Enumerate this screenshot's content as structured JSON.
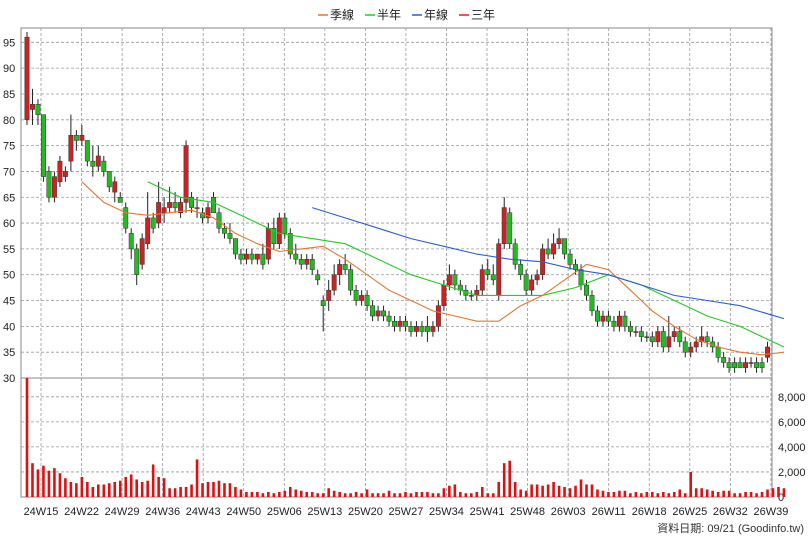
{
  "legend": [
    {
      "label": "季線",
      "color": "#e8762c"
    },
    {
      "label": "半年",
      "color": "#22cc22"
    },
    {
      "label": "年線",
      "color": "#2a5fd0"
    },
    {
      "label": "三年",
      "color": "#dd2222"
    }
  ],
  "footer": "資料日期: 09/21  (Goodinfo.tw)",
  "colors": {
    "up": "#cc2222",
    "down": "#22bb22",
    "volume": "#dd1111",
    "grid": "#9a9a9a",
    "wick": "#222222"
  },
  "chart_data": {
    "type": "candlestick",
    "price_axis": {
      "min": 30,
      "max": 97,
      "ticks": [
        30,
        35,
        40,
        45,
        50,
        55,
        60,
        65,
        70,
        75,
        80,
        85,
        90,
        95
      ]
    },
    "volume_axis": {
      "min": 0,
      "max": 9500,
      "ticks": [
        "0",
        "2,000",
        "4,000",
        "6,000",
        "8,000"
      ],
      "tick_values": [
        0,
        2000,
        4000,
        6000,
        8000
      ]
    },
    "x_labels": [
      "24W15",
      "24W22",
      "24W29",
      "24W36",
      "24W43",
      "24W50",
      "25W06",
      "25W13",
      "25W20",
      "25W27",
      "25W34",
      "25W41",
      "25W48",
      "26W03",
      "26W11",
      "26W18",
      "26W25",
      "26W32",
      "26W39"
    ],
    "candles": [
      {
        "o": 80,
        "h": 97,
        "l": 79,
        "c": 96
      },
      {
        "o": 82,
        "h": 86,
        "l": 79,
        "c": 83
      },
      {
        "o": 83,
        "h": 84,
        "l": 79,
        "c": 81
      },
      {
        "o": 81,
        "h": 81,
        "l": 68,
        "c": 69
      },
      {
        "o": 70,
        "h": 71,
        "l": 64,
        "c": 65
      },
      {
        "o": 65,
        "h": 70,
        "l": 64,
        "c": 69
      },
      {
        "o": 68,
        "h": 73,
        "l": 67,
        "c": 72
      },
      {
        "o": 69,
        "h": 71,
        "l": 68,
        "c": 70
      },
      {
        "o": 72,
        "h": 81,
        "l": 70,
        "c": 77
      },
      {
        "o": 77,
        "h": 78,
        "l": 74,
        "c": 76
      },
      {
        "o": 76,
        "h": 79,
        "l": 75,
        "c": 77
      },
      {
        "o": 76,
        "h": 76,
        "l": 71,
        "c": 72
      },
      {
        "o": 72,
        "h": 75,
        "l": 69,
        "c": 71
      },
      {
        "o": 71,
        "h": 75,
        "l": 70,
        "c": 73
      },
      {
        "o": 72,
        "h": 73,
        "l": 69,
        "c": 70
      },
      {
        "o": 70,
        "h": 70,
        "l": 66,
        "c": 67
      },
      {
        "o": 66,
        "h": 69,
        "l": 64,
        "c": 68
      },
      {
        "o": 65,
        "h": 66,
        "l": 64,
        "c": 64
      },
      {
        "o": 63,
        "h": 64,
        "l": 58,
        "c": 59
      },
      {
        "o": 58,
        "h": 59,
        "l": 53,
        "c": 55
      },
      {
        "o": 55,
        "h": 56,
        "l": 48,
        "c": 50
      },
      {
        "o": 52,
        "h": 58,
        "l": 51,
        "c": 57
      },
      {
        "o": 56,
        "h": 66,
        "l": 55,
        "c": 61
      },
      {
        "o": 61,
        "h": 62,
        "l": 58,
        "c": 59
      },
      {
        "o": 60,
        "h": 68,
        "l": 59,
        "c": 64
      },
      {
        "o": 62,
        "h": 65,
        "l": 60,
        "c": 63
      },
      {
        "o": 63,
        "h": 67,
        "l": 62,
        "c": 64
      },
      {
        "o": 64,
        "h": 66,
        "l": 62,
        "c": 63
      },
      {
        "o": 62,
        "h": 65,
        "l": 61,
        "c": 64
      },
      {
        "o": 64,
        "h": 76,
        "l": 62,
        "c": 75
      },
      {
        "o": 65,
        "h": 66,
        "l": 62,
        "c": 63
      },
      {
        "o": 63,
        "h": 65,
        "l": 61,
        "c": 63
      },
      {
        "o": 62,
        "h": 63,
        "l": 60,
        "c": 61
      },
      {
        "o": 61,
        "h": 64,
        "l": 60,
        "c": 63
      },
      {
        "o": 65,
        "h": 66,
        "l": 62,
        "c": 62
      },
      {
        "o": 62,
        "h": 63,
        "l": 58,
        "c": 59
      },
      {
        "o": 59,
        "h": 60,
        "l": 57,
        "c": 58
      },
      {
        "o": 58,
        "h": 60,
        "l": 56,
        "c": 57
      },
      {
        "o": 57,
        "h": 57,
        "l": 53,
        "c": 54
      },
      {
        "o": 54,
        "h": 55,
        "l": 52,
        "c": 53
      },
      {
        "o": 53,
        "h": 55,
        "l": 52,
        "c": 54
      },
      {
        "o": 54,
        "h": 55,
        "l": 52,
        "c": 53
      },
      {
        "o": 53,
        "h": 54,
        "l": 52,
        "c": 54
      },
      {
        "o": 54,
        "h": 56,
        "l": 51,
        "c": 52
      },
      {
        "o": 53,
        "h": 60,
        "l": 52,
        "c": 59
      },
      {
        "o": 59,
        "h": 61,
        "l": 55,
        "c": 56
      },
      {
        "o": 56,
        "h": 62,
        "l": 55,
        "c": 61
      },
      {
        "o": 61,
        "h": 62,
        "l": 57,
        "c": 58
      },
      {
        "o": 58,
        "h": 59,
        "l": 53,
        "c": 54
      },
      {
        "o": 54,
        "h": 56,
        "l": 52,
        "c": 53
      },
      {
        "o": 53,
        "h": 54,
        "l": 51,
        "c": 52
      },
      {
        "o": 52,
        "h": 54,
        "l": 51,
        "c": 53
      },
      {
        "o": 53,
        "h": 54,
        "l": 50,
        "c": 51
      },
      {
        "o": 50,
        "h": 51,
        "l": 48,
        "c": 49
      },
      {
        "o": 45,
        "h": 46,
        "l": 39,
        "c": 44
      },
      {
        "o": 45,
        "h": 49,
        "l": 43,
        "c": 47
      },
      {
        "o": 47,
        "h": 52,
        "l": 46,
        "c": 50
      },
      {
        "o": 50,
        "h": 53,
        "l": 48,
        "c": 52
      },
      {
        "o": 52,
        "h": 54,
        "l": 50,
        "c": 51
      },
      {
        "o": 51,
        "h": 52,
        "l": 46,
        "c": 47
      },
      {
        "o": 47,
        "h": 48,
        "l": 44,
        "c": 45
      },
      {
        "o": 45,
        "h": 47,
        "l": 44,
        "c": 46
      },
      {
        "o": 46,
        "h": 47,
        "l": 43,
        "c": 44
      },
      {
        "o": 44,
        "h": 45,
        "l": 41,
        "c": 42
      },
      {
        "o": 42,
        "h": 44,
        "l": 41,
        "c": 43
      },
      {
        "o": 43,
        "h": 44,
        "l": 41,
        "c": 42
      },
      {
        "o": 42,
        "h": 43,
        "l": 40,
        "c": 41
      },
      {
        "o": 41,
        "h": 42,
        "l": 39,
        "c": 40
      },
      {
        "o": 40,
        "h": 42,
        "l": 39,
        "c": 41
      },
      {
        "o": 41,
        "h": 42,
        "l": 39,
        "c": 40
      },
      {
        "o": 40,
        "h": 41,
        "l": 38,
        "c": 39
      },
      {
        "o": 39,
        "h": 41,
        "l": 38,
        "c": 40
      },
      {
        "o": 40,
        "h": 41,
        "l": 38,
        "c": 39
      },
      {
        "o": 40,
        "h": 42,
        "l": 37,
        "c": 39
      },
      {
        "o": 39,
        "h": 41,
        "l": 38,
        "c": 40
      },
      {
        "o": 40,
        "h": 45,
        "l": 39,
        "c": 44
      },
      {
        "o": 44,
        "h": 49,
        "l": 43,
        "c": 48
      },
      {
        "o": 48,
        "h": 52,
        "l": 47,
        "c": 50
      },
      {
        "o": 50,
        "h": 51,
        "l": 47,
        "c": 48
      },
      {
        "o": 48,
        "h": 49,
        "l": 46,
        "c": 47
      },
      {
        "o": 47,
        "h": 48,
        "l": 45,
        "c": 46
      },
      {
        "o": 46,
        "h": 47,
        "l": 45,
        "c": 46
      },
      {
        "o": 46,
        "h": 48,
        "l": 45,
        "c": 47
      },
      {
        "o": 47,
        "h": 52,
        "l": 46,
        "c": 51
      },
      {
        "o": 51,
        "h": 53,
        "l": 49,
        "c": 50
      },
      {
        "o": 50,
        "h": 52,
        "l": 48,
        "c": 49
      },
      {
        "o": 46,
        "h": 57,
        "l": 45,
        "c": 56
      },
      {
        "o": 56,
        "h": 65,
        "l": 55,
        "c": 63
      },
      {
        "o": 62,
        "h": 63,
        "l": 55,
        "c": 56
      },
      {
        "o": 56,
        "h": 57,
        "l": 51,
        "c": 52
      },
      {
        "o": 52,
        "h": 53,
        "l": 49,
        "c": 50
      },
      {
        "o": 50,
        "h": 51,
        "l": 46,
        "c": 47
      },
      {
        "o": 47,
        "h": 50,
        "l": 46,
        "c": 49
      },
      {
        "o": 49,
        "h": 51,
        "l": 48,
        "c": 50
      },
      {
        "o": 50,
        "h": 56,
        "l": 49,
        "c": 55
      },
      {
        "o": 55,
        "h": 57,
        "l": 53,
        "c": 54
      },
      {
        "o": 54,
        "h": 58,
        "l": 53,
        "c": 56
      },
      {
        "o": 56,
        "h": 59,
        "l": 55,
        "c": 57
      },
      {
        "o": 57,
        "h": 57,
        "l": 53,
        "c": 54
      },
      {
        "o": 54,
        "h": 55,
        "l": 51,
        "c": 52
      },
      {
        "o": 52,
        "h": 53,
        "l": 50,
        "c": 51
      },
      {
        "o": 51,
        "h": 52,
        "l": 47,
        "c": 48
      },
      {
        "o": 48,
        "h": 49,
        "l": 45,
        "c": 46
      },
      {
        "o": 46,
        "h": 47,
        "l": 42,
        "c": 43
      },
      {
        "o": 43,
        "h": 44,
        "l": 40,
        "c": 41
      },
      {
        "o": 41,
        "h": 43,
        "l": 40,
        "c": 42
      },
      {
        "o": 42,
        "h": 43,
        "l": 40,
        "c": 41
      },
      {
        "o": 41,
        "h": 42,
        "l": 39,
        "c": 40
      },
      {
        "o": 40,
        "h": 43,
        "l": 39,
        "c": 42
      },
      {
        "o": 42,
        "h": 43,
        "l": 39,
        "c": 40
      },
      {
        "o": 40,
        "h": 41,
        "l": 38,
        "c": 39
      },
      {
        "o": 39,
        "h": 40,
        "l": 38,
        "c": 39
      },
      {
        "o": 39,
        "h": 40,
        "l": 37,
        "c": 38
      },
      {
        "o": 38,
        "h": 39,
        "l": 37,
        "c": 38
      },
      {
        "o": 38,
        "h": 39,
        "l": 36,
        "c": 37
      },
      {
        "o": 37,
        "h": 40,
        "l": 36,
        "c": 39
      },
      {
        "o": 39,
        "h": 40,
        "l": 35,
        "c": 36
      },
      {
        "o": 36,
        "h": 42,
        "l": 35,
        "c": 38
      },
      {
        "o": 38,
        "h": 40,
        "l": 37,
        "c": 39
      },
      {
        "o": 39,
        "h": 40,
        "l": 36,
        "c": 37
      },
      {
        "o": 37,
        "h": 38,
        "l": 34,
        "c": 35
      },
      {
        "o": 35,
        "h": 37,
        "l": 34,
        "c": 36
      },
      {
        "o": 36,
        "h": 38,
        "l": 35,
        "c": 37
      },
      {
        "o": 37,
        "h": 40,
        "l": 36,
        "c": 38
      },
      {
        "o": 38,
        "h": 39,
        "l": 36,
        "c": 37
      },
      {
        "o": 37,
        "h": 38,
        "l": 35,
        "c": 36
      },
      {
        "o": 36,
        "h": 37,
        "l": 33,
        "c": 34
      },
      {
        "o": 34,
        "h": 35,
        "l": 32,
        "c": 33
      },
      {
        "o": 33,
        "h": 34,
        "l": 31,
        "c": 32
      },
      {
        "o": 33,
        "h": 34,
        "l": 31,
        "c": 32
      },
      {
        "o": 33,
        "h": 34,
        "l": 32,
        "c": 32
      },
      {
        "o": 32,
        "h": 34,
        "l": 31,
        "c": 33
      },
      {
        "o": 33,
        "h": 34,
        "l": 32,
        "c": 33
      },
      {
        "o": 33,
        "h": 34,
        "l": 31,
        "c": 32
      },
      {
        "o": 33,
        "h": 34,
        "l": 31,
        "c": 32
      },
      {
        "o": 34,
        "h": 37,
        "l": 33,
        "c": 36
      }
    ],
    "volume": [
      9500,
      2700,
      2200,
      2500,
      2100,
      2300,
      1900,
      1500,
      1200,
      1100,
      1600,
      1200,
      800,
      1000,
      1000,
      1100,
      1200,
      1300,
      1600,
      1800,
      1400,
      1200,
      1300,
      2600,
      1600,
      1500,
      700,
      700,
      800,
      800,
      1000,
      3000,
      1100,
      1200,
      1200,
      1300,
      1100,
      1100,
      800,
      600,
      400,
      400,
      400,
      300,
      400,
      300,
      400,
      500,
      800,
      600,
      500,
      400,
      400,
      300,
      300,
      700,
      500,
      400,
      300,
      300,
      400,
      300,
      600,
      300,
      300,
      300,
      500,
      300,
      300,
      400,
      300,
      400,
      400,
      400,
      300,
      300,
      700,
      900,
      1000,
      400,
      300,
      300,
      400,
      800,
      300,
      300,
      1200,
      2700,
      2900,
      1200,
      600,
      500,
      1000,
      1000,
      900,
      1000,
      1200,
      900,
      800,
      700,
      900,
      1400,
      1000,
      1000,
      600,
      500,
      400,
      400,
      500,
      500,
      300,
      400,
      300,
      400,
      400,
      300,
      400,
      300,
      400,
      600,
      300,
      2000,
      700,
      700,
      600,
      500,
      400,
      500,
      500,
      300,
      300,
      400,
      400,
      300,
      400,
      600,
      700,
      800,
      700
    ],
    "ma_quarter": [
      [
        10,
        68
      ],
      [
        14,
        64
      ],
      [
        18,
        62
      ],
      [
        22,
        61.5
      ],
      [
        26,
        62
      ],
      [
        30,
        62.5
      ],
      [
        34,
        61
      ],
      [
        38,
        58
      ],
      [
        42,
        56
      ],
      [
        46,
        54.5
      ],
      [
        50,
        55
      ],
      [
        54,
        55.5
      ],
      [
        58,
        53
      ],
      [
        62,
        50
      ],
      [
        66,
        47
      ],
      [
        70,
        45
      ],
      [
        74,
        43
      ],
      [
        78,
        42
      ],
      [
        82,
        41
      ],
      [
        86,
        41
      ],
      [
        90,
        44
      ],
      [
        94,
        46
      ],
      [
        98,
        49
      ],
      [
        102,
        52
      ],
      [
        106,
        51
      ],
      [
        110,
        47
      ],
      [
        114,
        43
      ],
      [
        118,
        40
      ],
      [
        122,
        37.5
      ],
      [
        126,
        36
      ],
      [
        130,
        35
      ],
      [
        134,
        34.5
      ],
      [
        138,
        35
      ]
    ],
    "ma_halfyear": [
      [
        22,
        68
      ],
      [
        28,
        65
      ],
      [
        34,
        64
      ],
      [
        40,
        61
      ],
      [
        46,
        58
      ],
      [
        52,
        57
      ],
      [
        58,
        56
      ],
      [
        64,
        53
      ],
      [
        70,
        50
      ],
      [
        76,
        48
      ],
      [
        82,
        46
      ],
      [
        88,
        46
      ],
      [
        94,
        46
      ],
      [
        100,
        47.5
      ],
      [
        106,
        50
      ],
      [
        112,
        48
      ],
      [
        118,
        45
      ],
      [
        124,
        42
      ],
      [
        130,
        40
      ],
      [
        138,
        36
      ]
    ],
    "ma_year": [
      [
        52,
        63
      ],
      [
        58,
        61
      ],
      [
        64,
        59
      ],
      [
        70,
        57
      ],
      [
        76,
        55.5
      ],
      [
        82,
        54
      ],
      [
        88,
        53
      ],
      [
        94,
        52.5
      ],
      [
        100,
        51
      ],
      [
        106,
        50
      ],
      [
        112,
        48
      ],
      [
        118,
        46
      ],
      [
        124,
        45
      ],
      [
        130,
        44
      ],
      [
        138,
        41.5
      ]
    ],
    "ma_3year": []
  }
}
